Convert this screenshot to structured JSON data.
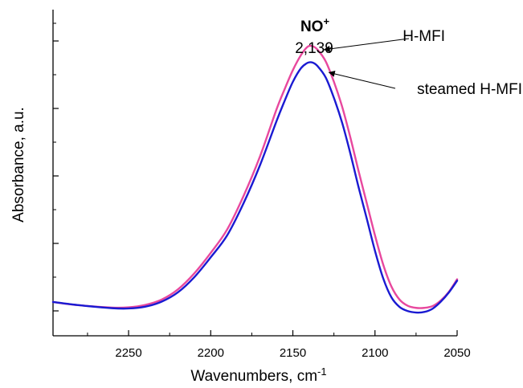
{
  "chart_data": {
    "type": "line",
    "xlabel": "Wavenumbers, cm",
    "xlabel_superscript": "-1",
    "ylabel": "Absorbance, a.u.",
    "x_reversed": true,
    "xlim": [
      2296,
      2050
    ],
    "ylim": [
      0,
      1.0
    ],
    "x_ticks": [
      2250,
      2200,
      2150,
      2100,
      2050
    ],
    "x_tick_labels": [
      "2250",
      "2200",
      "2150",
      "2100",
      "2050"
    ],
    "y_tick_labels_shown": false,
    "grid": false,
    "series": [
      {
        "name": "H-MFI",
        "color": "#e8489e",
        "x": [
          2296,
          2280,
          2260,
          2250,
          2240,
          2230,
          2220,
          2210,
          2200,
          2190,
          2180,
          2170,
          2160,
          2155,
          2150,
          2145,
          2141,
          2138,
          2135,
          2130,
          2125,
          2120,
          2115,
          2110,
          2105,
          2100,
          2095,
          2090,
          2085,
          2080,
          2075,
          2070,
          2065,
          2060,
          2055,
          2050
        ],
        "y": [
          0.077,
          0.066,
          0.058,
          0.059,
          0.067,
          0.085,
          0.12,
          0.175,
          0.245,
          0.325,
          0.44,
          0.575,
          0.735,
          0.805,
          0.87,
          0.922,
          0.95,
          0.952,
          0.94,
          0.9,
          0.83,
          0.745,
          0.64,
          0.525,
          0.415,
          0.305,
          0.205,
          0.13,
          0.085,
          0.064,
          0.057,
          0.057,
          0.063,
          0.082,
          0.112,
          0.155
        ]
      },
      {
        "name": "steamed H-MFI",
        "color": "#1a1ad2",
        "x": [
          2296,
          2280,
          2260,
          2250,
          2240,
          2230,
          2220,
          2210,
          2200,
          2190,
          2180,
          2170,
          2160,
          2155,
          2150,
          2145,
          2141,
          2138,
          2135,
          2130,
          2125,
          2120,
          2115,
          2110,
          2105,
          2100,
          2095,
          2090,
          2085,
          2080,
          2075,
          2070,
          2065,
          2060,
          2055,
          2050
        ],
        "y": [
          0.077,
          0.066,
          0.056,
          0.055,
          0.061,
          0.078,
          0.11,
          0.162,
          0.23,
          0.305,
          0.415,
          0.545,
          0.695,
          0.765,
          0.83,
          0.877,
          0.895,
          0.896,
          0.884,
          0.845,
          0.775,
          0.69,
          0.585,
          0.47,
          0.362,
          0.252,
          0.158,
          0.093,
          0.06,
          0.046,
          0.041,
          0.043,
          0.054,
          0.078,
          0.11,
          0.15
        ]
      }
    ],
    "annotations": [
      {
        "text": "H-MFI",
        "target_x": 2131,
        "target_y": 0.94
      },
      {
        "text": "steamed H-MFI",
        "target_x": 2128,
        "target_y": 0.862
      }
    ],
    "peak_annotation": {
      "title": "NO",
      "title_superscript": "+",
      "value": "2,139"
    }
  }
}
